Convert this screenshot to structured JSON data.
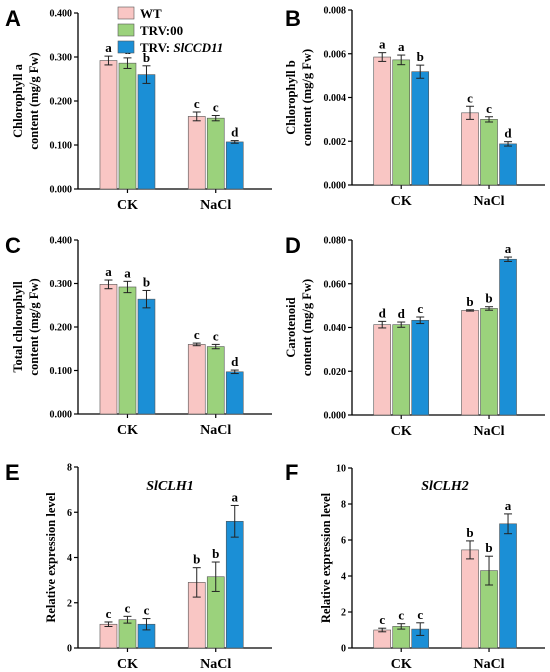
{
  "legend": {
    "entries": [
      {
        "label": "WT",
        "color": "#f9c6c4"
      },
      {
        "label": "TRV:00",
        "color": "#9bd27c"
      },
      {
        "label": "TRV: ",
        "label_italic": "SlCCD11",
        "color": "#1b8fd6"
      }
    ]
  },
  "colors": {
    "WT": "#f9c6c4",
    "TRV00": "#9bd27c",
    "SlCCD11": "#1b8fd6",
    "stroke": "#555555"
  },
  "chart_data": [
    {
      "panel": "A",
      "type": "bar",
      "ylabel": [
        "Chlorophyll a",
        "content (mg/g Fw)"
      ],
      "ylim": [
        0,
        0.4
      ],
      "yticks": [
        "0.000",
        "0.100",
        "0.200",
        "0.300",
        "0.400"
      ],
      "yticks_values": [
        0,
        0.1,
        0.2,
        0.3,
        0.4
      ],
      "categories": [
        "CK",
        "NaCl"
      ],
      "series": [
        {
          "values": [
            0.292,
            0.165
          ],
          "errors": [
            0.01,
            0.01
          ],
          "letters": [
            "a",
            "c"
          ]
        },
        {
          "values": [
            0.286,
            0.161
          ],
          "errors": [
            0.012,
            0.006
          ],
          "letters": [
            "a",
            "c"
          ]
        },
        {
          "values": [
            0.26,
            0.107
          ],
          "errors": [
            0.02,
            0.003
          ],
          "letters": [
            "b",
            "d"
          ]
        }
      ]
    },
    {
      "panel": "B",
      "type": "bar",
      "ylabel": [
        "Chlorophyll b",
        "content (mg/g Fw)"
      ],
      "ylim": [
        0,
        0.008
      ],
      "yticks": [
        "0.000",
        "0.002",
        "0.004",
        "0.006",
        "0.008"
      ],
      "yticks_values": [
        0,
        0.002,
        0.004,
        0.006,
        0.008
      ],
      "categories": [
        "CK",
        "NaCl"
      ],
      "series": [
        {
          "values": [
            0.00585,
            0.0033
          ],
          "errors": [
            0.0002,
            0.0003
          ],
          "letters": [
            "a",
            "c"
          ]
        },
        {
          "values": [
            0.00572,
            0.003
          ],
          "errors": [
            0.00022,
            0.00012
          ],
          "letters": [
            "a",
            "c"
          ]
        },
        {
          "values": [
            0.00518,
            0.00188
          ],
          "errors": [
            0.0003,
            0.0001
          ],
          "letters": [
            "b",
            "d"
          ]
        }
      ]
    },
    {
      "panel": "C",
      "type": "bar",
      "ylabel": [
        "Total chlorophyll",
        "content (mg/g Fw)"
      ],
      "ylim": [
        0,
        0.4
      ],
      "yticks": [
        "0.000",
        "0.100",
        "0.200",
        "0.300",
        "0.400"
      ],
      "yticks_values": [
        0,
        0.1,
        0.2,
        0.3,
        0.4
      ],
      "categories": [
        "CK",
        "NaCl"
      ],
      "series": [
        {
          "values": [
            0.298,
            0.16
          ],
          "errors": [
            0.01,
            0.003
          ],
          "letters": [
            "a",
            "c"
          ]
        },
        {
          "values": [
            0.292,
            0.155
          ],
          "errors": [
            0.013,
            0.005
          ],
          "letters": [
            "a",
            "c"
          ]
        },
        {
          "values": [
            0.264,
            0.097
          ],
          "errors": [
            0.02,
            0.004
          ],
          "letters": [
            "b",
            "d"
          ]
        }
      ]
    },
    {
      "panel": "D",
      "type": "bar",
      "ylabel": [
        "Carotenoid",
        "content (mg/g Fw)"
      ],
      "ylim": [
        0,
        0.08
      ],
      "yticks": [
        "0.000",
        "0.020",
        "0.040",
        "0.060",
        "0.080"
      ],
      "yticks_values": [
        0,
        0.02,
        0.04,
        0.06,
        0.08
      ],
      "categories": [
        "CK",
        "NaCl"
      ],
      "series": [
        {
          "values": [
            0.0413,
            0.0478
          ],
          "errors": [
            0.0015,
            0.0003
          ],
          "letters": [
            "d",
            "b"
          ]
        },
        {
          "values": [
            0.0413,
            0.0487
          ],
          "errors": [
            0.0012,
            0.0008
          ],
          "letters": [
            "d",
            "b"
          ]
        },
        {
          "values": [
            0.0433,
            0.0712
          ],
          "errors": [
            0.0015,
            0.001
          ],
          "letters": [
            "c",
            "a"
          ]
        }
      ]
    },
    {
      "panel": "E",
      "type": "bar",
      "gene": "SlCLH1",
      "ylabel": [
        "Relative expression level"
      ],
      "ylim": [
        0,
        8
      ],
      "yticks": [
        "0",
        "2",
        "4",
        "6",
        "8"
      ],
      "yticks_values": [
        0,
        2,
        4,
        6,
        8
      ],
      "categories": [
        "CK",
        "NaCl"
      ],
      "series": [
        {
          "values": [
            1.05,
            2.9
          ],
          "errors": [
            0.1,
            0.65
          ],
          "letters": [
            "c",
            "b"
          ]
        },
        {
          "values": [
            1.25,
            3.15
          ],
          "errors": [
            0.15,
            0.65
          ],
          "letters": [
            "c",
            "b"
          ]
        },
        {
          "values": [
            1.05,
            5.6
          ],
          "errors": [
            0.25,
            0.7
          ],
          "letters": [
            "c",
            "a"
          ]
        }
      ]
    },
    {
      "panel": "F",
      "type": "bar",
      "gene": "SlCLH2",
      "ylabel": [
        "Relative expression level"
      ],
      "ylim": [
        0,
        10
      ],
      "yticks": [
        "0",
        "2",
        "4",
        "6",
        "8",
        "10"
      ],
      "yticks_values": [
        0,
        2,
        4,
        6,
        8,
        10
      ],
      "categories": [
        "CK",
        "NaCl"
      ],
      "series": [
        {
          "values": [
            1.0,
            5.45
          ],
          "errors": [
            0.1,
            0.5
          ],
          "letters": [
            "c",
            "b"
          ]
        },
        {
          "values": [
            1.2,
            4.3
          ],
          "errors": [
            0.15,
            0.8
          ],
          "letters": [
            "c",
            "b"
          ]
        },
        {
          "values": [
            1.05,
            6.9
          ],
          "errors": [
            0.35,
            0.55
          ],
          "letters": [
            "c",
            "a"
          ]
        }
      ]
    }
  ]
}
